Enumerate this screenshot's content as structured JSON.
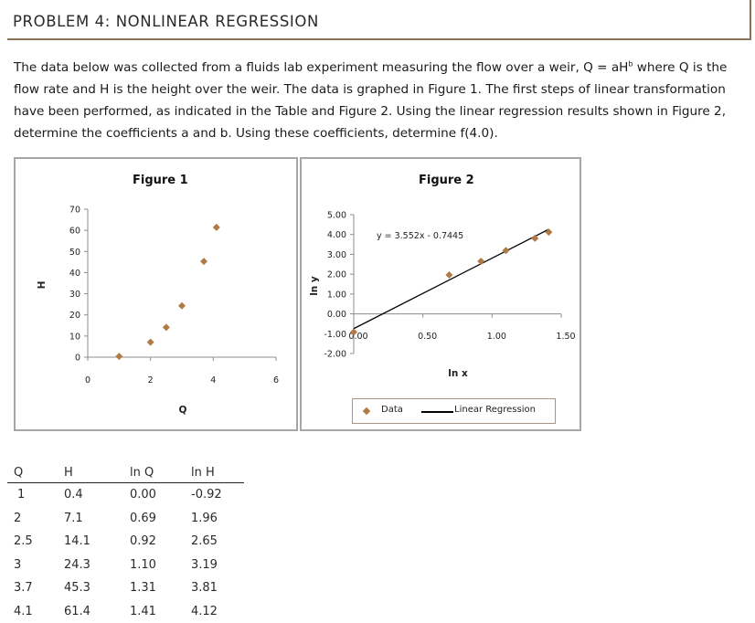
{
  "header": {
    "title": "PROBLEM 4:  NONLINEAR REGRESSION",
    "accent_color": "#8b7258"
  },
  "problem": {
    "part1": "The data below was collected from a fluids lab experiment measuring the flow over a weir, Q = aH",
    "superscript": "b",
    "part2": " where Q is the flow rate and H is the height over the weir.  The data is graphed in Figure 1.  The first steps of linear transformation have been performed, as indicated in the Table and Figure 2.  Using the linear regression results shown in Figure 2, determine the coefficients a and b.  Using these coefficients, determine f(4.0)."
  },
  "figure1": {
    "title": "Figure 1",
    "xlabel": "Q",
    "ylabel": "H",
    "x_ticks": [
      "0",
      "2",
      "4",
      "6"
    ],
    "y_ticks": [
      "0",
      "10",
      "20",
      "30",
      "40",
      "50",
      "60",
      "70"
    ]
  },
  "figure2": {
    "title": "Figure 2",
    "xlabel": "ln x",
    "ylabel": "ln y",
    "equation": "y = 3.552x - 0.7445",
    "x_ticks": [
      "0.00",
      "0.50",
      "1.00",
      "1.50"
    ],
    "y_ticks": [
      "5.00",
      "4.00",
      "3.00",
      "2.00",
      "1.00",
      "0.00",
      "-1.00",
      "-2.00"
    ],
    "legend": {
      "data_label": "Data",
      "line_label": "Linear Regression"
    }
  },
  "table": {
    "headers": [
      "Q",
      "H",
      "ln Q",
      "ln H"
    ],
    "rows": [
      [
        "1",
        "0.4",
        "0.00",
        "-0.92"
      ],
      [
        "2",
        "7.1",
        "0.69",
        "1.96"
      ],
      [
        "2.5",
        "14.1",
        "0.92",
        "2.65"
      ],
      [
        "3",
        "24.3",
        "1.10",
        "3.19"
      ],
      [
        "3.7",
        "45.3",
        "1.31",
        "3.81"
      ],
      [
        "4.1",
        "61.4",
        "1.41",
        "4.12"
      ]
    ]
  },
  "colors": {
    "marker": "#b07a45",
    "regression_line": "#000000",
    "axis": "#8c8c8c",
    "figure_border": "#a6a6a6"
  },
  "chart_data": [
    {
      "type": "scatter",
      "title": "Figure 1",
      "xlabel": "Q",
      "ylabel": "H",
      "xlim": [
        0,
        6
      ],
      "ylim": [
        0,
        70
      ],
      "x_ticks": [
        0,
        2,
        4,
        6
      ],
      "y_ticks": [
        0,
        10,
        20,
        30,
        40,
        50,
        60,
        70
      ],
      "grid": false,
      "series": [
        {
          "name": "Data",
          "x": [
            1,
            2,
            2.5,
            3,
            3.7,
            4.1
          ],
          "y": [
            0.4,
            7.1,
            14.1,
            24.3,
            45.3,
            61.4
          ]
        }
      ]
    },
    {
      "type": "scatter",
      "title": "Figure 2",
      "xlabel": "ln x",
      "ylabel": "ln y",
      "xlim": [
        0,
        1.5
      ],
      "ylim": [
        -2,
        5
      ],
      "x_ticks": [
        0,
        0.5,
        1.0,
        1.5
      ],
      "y_ticks": [
        -2,
        -1,
        0,
        1,
        2,
        3,
        4,
        5
      ],
      "grid": false,
      "legend_position": "bottom",
      "annotations": [
        "y = 3.552x - 0.7445"
      ],
      "series": [
        {
          "name": "Data",
          "x": [
            0.0,
            0.69,
            0.92,
            1.1,
            1.31,
            1.41
          ],
          "y": [
            -0.92,
            1.96,
            2.65,
            3.19,
            3.81,
            4.12
          ]
        },
        {
          "name": "Linear Regression",
          "type": "line",
          "slope": 3.552,
          "intercept": -0.7445,
          "x": [
            0.0,
            1.41
          ],
          "y": [
            -0.7445,
            4.2638
          ]
        }
      ]
    }
  ]
}
